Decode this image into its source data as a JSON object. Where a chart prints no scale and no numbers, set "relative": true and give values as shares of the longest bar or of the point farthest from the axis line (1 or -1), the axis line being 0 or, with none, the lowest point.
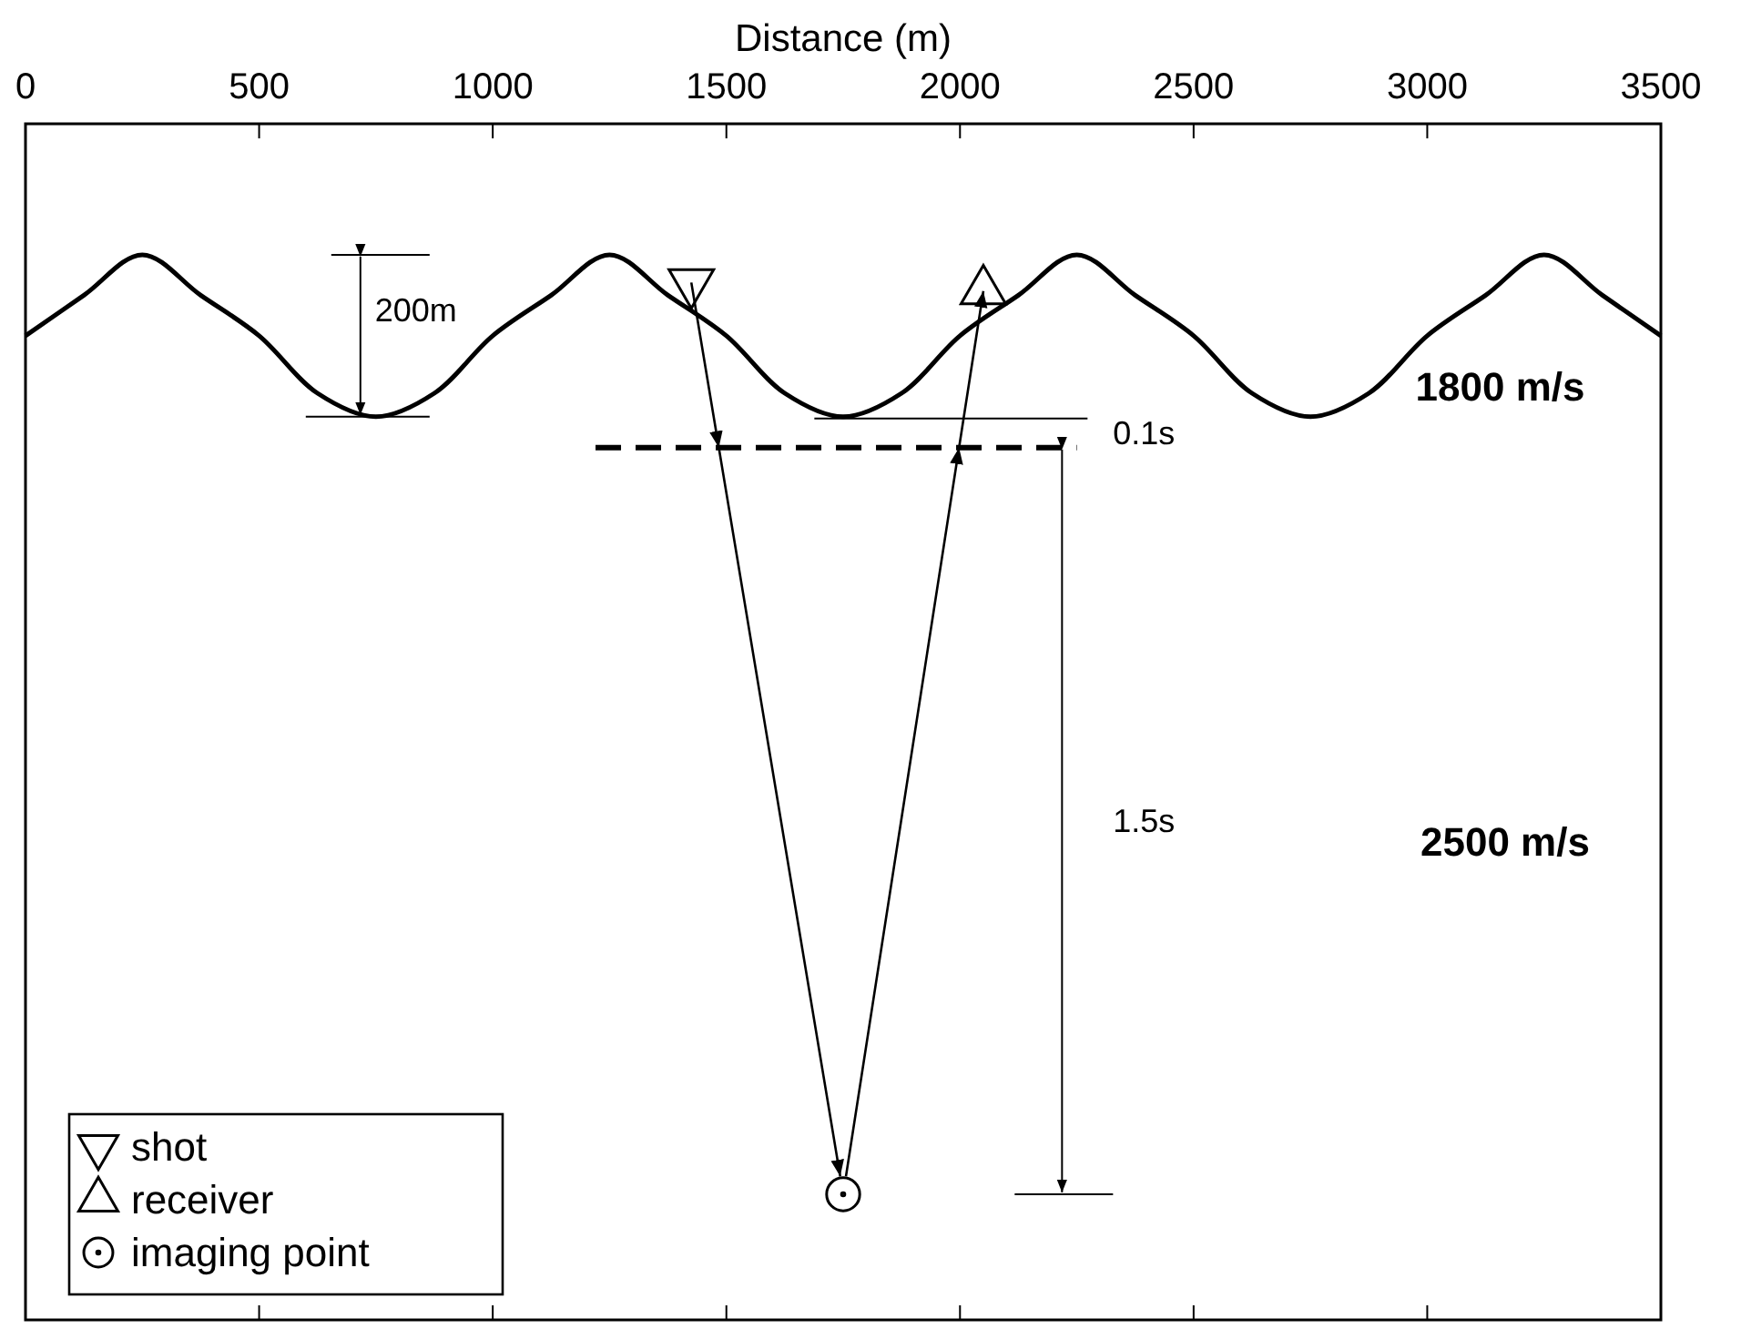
{
  "chart_data": {
    "type": "line",
    "xlabel": "Distance (m)",
    "relative": true,
    "xlim": [
      0,
      3500
    ],
    "xticks": [
      0,
      500,
      1000,
      1500,
      2000,
      2500,
      3000,
      3500
    ],
    "legend": "bottom left",
    "series": [
      {
        "color": "#000000",
        "x": [
          0,
          125,
          250,
          375,
          500,
          625,
          750,
          875,
          1000,
          1125,
          1250,
          1375,
          1500,
          1625,
          1750,
          1875,
          2000,
          2125,
          2250,
          2375,
          2500,
          2625,
          2750,
          2875,
          3000,
          3125,
          3250,
          3375,
          3500
        ],
        "values": [
          0.924,
          0.962,
          1.0,
          0.962,
          0.924,
          0.87,
          0.848,
          0.87,
          0.924,
          0.962,
          1.0,
          0.962,
          0.924,
          0.87,
          0.848,
          0.87,
          0.924,
          0.962,
          1.0,
          0.962,
          0.924,
          0.87,
          0.848,
          0.87,
          0.924,
          0.962,
          1.0,
          0.962,
          0.924
        ]
      },
      {
        "color": "#000000",
        "line_style": "dashed",
        "x": [
          1220,
          2250
        ],
        "values": [
          0.819,
          0.819
        ]
      },
      {
        "type": "scatter",
        "name": "shot",
        "color": "#000000",
        "marker": "triangle-down",
        "x": [
          1425
        ],
        "values": [
          0.974
        ]
      },
      {
        "type": "scatter",
        "name": "receiver",
        "color": "#000000",
        "marker": "triangle",
        "x": [
          2050
        ],
        "values": [
          0.966
        ]
      },
      {
        "type": "scatter",
        "name": "imaging point",
        "color": "#000000",
        "marker": "circle",
        "x": [
          1750
        ],
        "values": [
          0.118
        ]
      }
    ],
    "annotations": [
      "200m",
      "0.1s",
      "1.5s",
      "1800 m/s",
      "2500 m/s"
    ]
  }
}
